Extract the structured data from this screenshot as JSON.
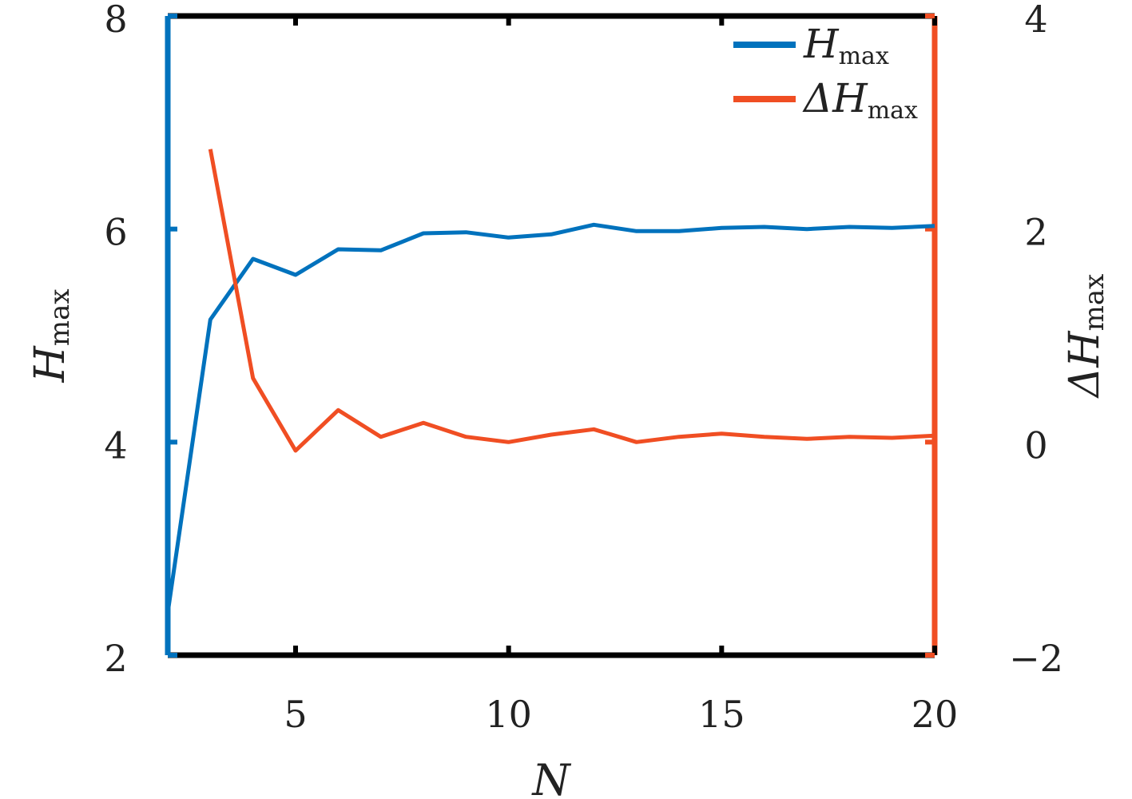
{
  "chart_data": {
    "type": "line",
    "x": [
      2,
      3,
      4,
      5,
      6,
      7,
      8,
      9,
      10,
      11,
      12,
      13,
      14,
      15,
      16,
      17,
      18,
      19,
      20
    ],
    "xlabel": "N",
    "xlim": [
      2,
      20
    ],
    "xticks": [
      "5",
      "10",
      "15",
      "20"
    ],
    "y_left": {
      "label_main": "H",
      "label_sub": "max",
      "ylim": [
        2,
        8
      ],
      "ticks": [
        "2",
        "4",
        "6",
        "8"
      ]
    },
    "y_right": {
      "label_main": "ΔH",
      "label_sub": "max",
      "ylim": [
        -2,
        4
      ],
      "ticks": [
        "−2",
        "0",
        "2",
        "4"
      ]
    },
    "series": [
      {
        "name_main": "H",
        "name_sub": "max",
        "axis": "left",
        "color": "#0072BD",
        "x": [
          2,
          3,
          4,
          5,
          6,
          7,
          8,
          9,
          10,
          11,
          12,
          13,
          14,
          15,
          16,
          17,
          18,
          19,
          20
        ],
        "values": [
          2.4,
          5.15,
          5.72,
          5.57,
          5.81,
          5.8,
          5.96,
          5.97,
          5.92,
          5.95,
          6.04,
          5.98,
          5.98,
          6.01,
          6.02,
          6.0,
          6.02,
          6.01,
          6.03
        ]
      },
      {
        "name_main": "ΔH",
        "name_sub": "max",
        "axis": "right",
        "color": "#F04E23",
        "x": [
          3,
          4,
          5,
          6,
          7,
          8,
          9,
          10,
          11,
          12,
          13,
          14,
          15,
          16,
          17,
          18,
          19,
          20
        ],
        "values": [
          2.75,
          0.6,
          -0.08,
          0.3,
          0.05,
          0.18,
          0.05,
          0.0,
          0.07,
          0.12,
          0.0,
          0.05,
          0.08,
          0.05,
          0.03,
          0.05,
          0.04,
          0.06
        ]
      }
    ],
    "legend_position": "top-right",
    "grid": false
  }
}
